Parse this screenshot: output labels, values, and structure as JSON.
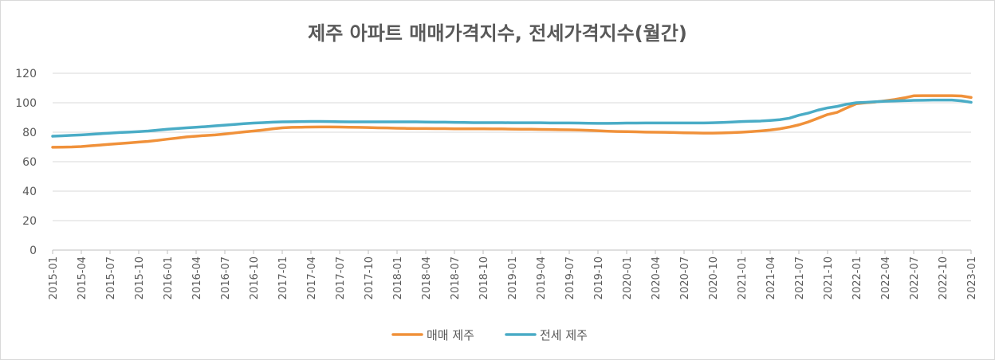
{
  "chart_data": {
    "type": "line",
    "title": "제주 아파트 매매가격지수, 전세가격지수(월간)",
    "xlabel": "",
    "ylabel": "",
    "ylim": [
      0,
      120
    ],
    "yticks": [
      0,
      20,
      40,
      60,
      80,
      100,
      120
    ],
    "grid": "horizontal",
    "legend_position": "bottom",
    "x": [
      "2015-01",
      "2015-02",
      "2015-03",
      "2015-04",
      "2015-05",
      "2015-06",
      "2015-07",
      "2015-08",
      "2015-09",
      "2015-10",
      "2015-11",
      "2015-12",
      "2016-01",
      "2016-02",
      "2016-03",
      "2016-04",
      "2016-05",
      "2016-06",
      "2016-07",
      "2016-08",
      "2016-09",
      "2016-10",
      "2016-11",
      "2016-12",
      "2017-01",
      "2017-02",
      "2017-03",
      "2017-04",
      "2017-05",
      "2017-06",
      "2017-07",
      "2017-08",
      "2017-09",
      "2017-10",
      "2017-11",
      "2017-12",
      "2018-01",
      "2018-02",
      "2018-03",
      "2018-04",
      "2018-05",
      "2018-06",
      "2018-07",
      "2018-08",
      "2018-09",
      "2018-10",
      "2018-11",
      "2018-12",
      "2019-01",
      "2019-02",
      "2019-03",
      "2019-04",
      "2019-05",
      "2019-06",
      "2019-07",
      "2019-08",
      "2019-09",
      "2019-10",
      "2019-11",
      "2019-12",
      "2020-01",
      "2020-02",
      "2020-03",
      "2020-04",
      "2020-05",
      "2020-06",
      "2020-07",
      "2020-08",
      "2020-09",
      "2020-10",
      "2020-11",
      "2020-12",
      "2021-01",
      "2021-02",
      "2021-03",
      "2021-04",
      "2021-05",
      "2021-06",
      "2021-07",
      "2021-08",
      "2021-09",
      "2021-10",
      "2021-11",
      "2021-12",
      "2022-01",
      "2022-02",
      "2022-03",
      "2022-04",
      "2022-05",
      "2022-06",
      "2022-07",
      "2022-08",
      "2022-09",
      "2022-10",
      "2022-11",
      "2022-12",
      "2023-01"
    ],
    "x_tick_labels": [
      "2015-01",
      "2015-04",
      "2015-07",
      "2015-10",
      "2016-01",
      "2016-04",
      "2016-07",
      "2016-10",
      "2017-01",
      "2017-04",
      "2017-07",
      "2017-10",
      "2018-01",
      "2018-04",
      "2018-07",
      "2018-10",
      "2019-01",
      "2019-04",
      "2019-07",
      "2019-10",
      "2020-01",
      "2020-04",
      "2020-07",
      "2020-10",
      "2021-01",
      "2021-04",
      "2021-07",
      "2021-10",
      "2022-01",
      "2022-04",
      "2022-07",
      "2022-10",
      "2023-01"
    ],
    "series": [
      {
        "name": "매매 제주",
        "color": "#f0913a",
        "values": [
          69.8,
          69.9,
          70.0,
          70.3,
          70.8,
          71.3,
          71.8,
          72.3,
          72.8,
          73.3,
          73.8,
          74.5,
          75.3,
          76.0,
          76.8,
          77.3,
          77.8,
          78.2,
          78.8,
          79.5,
          80.2,
          80.8,
          81.5,
          82.3,
          83.0,
          83.3,
          83.4,
          83.5,
          83.6,
          83.6,
          83.5,
          83.4,
          83.3,
          83.2,
          83.0,
          82.9,
          82.7,
          82.6,
          82.5,
          82.5,
          82.4,
          82.4,
          82.3,
          82.3,
          82.3,
          82.3,
          82.2,
          82.2,
          82.1,
          82.0,
          82.0,
          81.9,
          81.8,
          81.7,
          81.6,
          81.5,
          81.3,
          81.0,
          80.7,
          80.5,
          80.4,
          80.3,
          80.1,
          80.0,
          79.9,
          79.8,
          79.6,
          79.5,
          79.4,
          79.4,
          79.5,
          79.7,
          80.0,
          80.4,
          80.9,
          81.5,
          82.3,
          83.5,
          85.0,
          87.0,
          89.5,
          92.0,
          93.5,
          96.5,
          99.3,
          100.0,
          100.5,
          101.3,
          102.2,
          103.3,
          104.7,
          104.8,
          104.8,
          104.8,
          104.8,
          104.6,
          103.6
        ]
      },
      {
        "name": "전세 제주",
        "color": "#4aacc6",
        "values": [
          77.3,
          77.6,
          77.9,
          78.2,
          78.6,
          79.0,
          79.4,
          79.8,
          80.1,
          80.4,
          80.8,
          81.4,
          82.0,
          82.5,
          83.0,
          83.4,
          83.8,
          84.3,
          84.8,
          85.3,
          85.8,
          86.2,
          86.5,
          86.8,
          87.0,
          87.1,
          87.2,
          87.3,
          87.3,
          87.2,
          87.1,
          87.0,
          87.0,
          87.0,
          87.0,
          87.0,
          87.0,
          87.0,
          87.0,
          86.9,
          86.8,
          86.8,
          86.7,
          86.6,
          86.5,
          86.5,
          86.5,
          86.5,
          86.4,
          86.4,
          86.4,
          86.4,
          86.3,
          86.3,
          86.3,
          86.2,
          86.1,
          86.0,
          86.0,
          86.1,
          86.2,
          86.2,
          86.3,
          86.3,
          86.3,
          86.3,
          86.3,
          86.3,
          86.3,
          86.4,
          86.6,
          86.9,
          87.2,
          87.4,
          87.6,
          88.0,
          88.5,
          89.5,
          91.5,
          93.0,
          95.0,
          96.5,
          97.5,
          99.0,
          100.0,
          100.3,
          100.7,
          101.0,
          101.2,
          101.4,
          101.6,
          101.7,
          101.8,
          101.8,
          101.8,
          101.3,
          100.3
        ]
      }
    ]
  }
}
